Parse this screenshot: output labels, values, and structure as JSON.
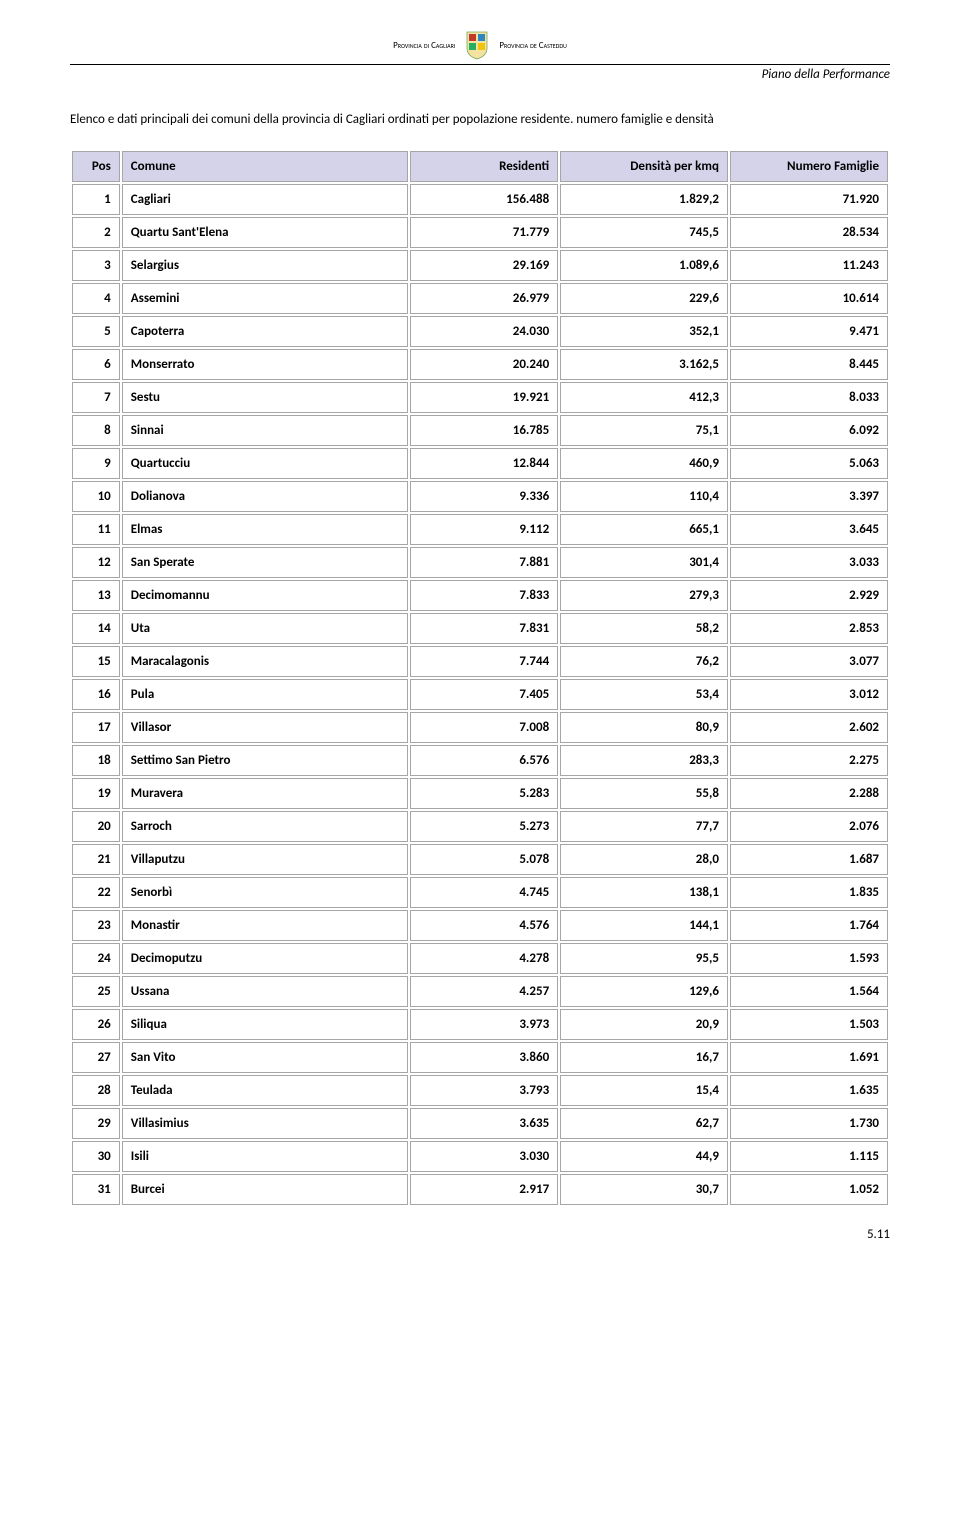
{
  "header": {
    "inst_left": "Provincia di Cagliari",
    "inst_right": "Provincia de Casteddu",
    "doc_title": "Piano della Performance"
  },
  "intro": "Elenco e dati principali dei comuni della provincia di Cagliari ordinati per popolazione residente. numero famiglie e densità",
  "table": {
    "columns": {
      "pos": "Pos",
      "comune": "Comune",
      "residenti": "Residenti",
      "densita": "Densità per kmq",
      "famiglie": "Numero Famiglie"
    },
    "rows": [
      {
        "pos": "1",
        "comune": "Cagliari",
        "res": "156.488",
        "dens": "1.829,2",
        "fam": "71.920"
      },
      {
        "pos": "2",
        "comune": "Quartu Sant'Elena",
        "res": "71.779",
        "dens": "745,5",
        "fam": "28.534"
      },
      {
        "pos": "3",
        "comune": "Selargius",
        "res": "29.169",
        "dens": "1.089,6",
        "fam": "11.243"
      },
      {
        "pos": "4",
        "comune": "Assemini",
        "res": "26.979",
        "dens": "229,6",
        "fam": "10.614"
      },
      {
        "pos": "5",
        "comune": "Capoterra",
        "res": "24.030",
        "dens": "352,1",
        "fam": "9.471"
      },
      {
        "pos": "6",
        "comune": "Monserrato",
        "res": "20.240",
        "dens": "3.162,5",
        "fam": "8.445"
      },
      {
        "pos": "7",
        "comune": "Sestu",
        "res": "19.921",
        "dens": "412,3",
        "fam": "8.033"
      },
      {
        "pos": "8",
        "comune": "Sinnai",
        "res": "16.785",
        "dens": "75,1",
        "fam": "6.092"
      },
      {
        "pos": "9",
        "comune": "Quartucciu",
        "res": "12.844",
        "dens": "460,9",
        "fam": "5.063"
      },
      {
        "pos": "10",
        "comune": "Dolianova",
        "res": "9.336",
        "dens": "110,4",
        "fam": "3.397"
      },
      {
        "pos": "11",
        "comune": "Elmas",
        "res": "9.112",
        "dens": "665,1",
        "fam": "3.645"
      },
      {
        "pos": "12",
        "comune": "San Sperate",
        "res": "7.881",
        "dens": "301,4",
        "fam": "3.033"
      },
      {
        "pos": "13",
        "comune": "Decimomannu",
        "res": "7.833",
        "dens": "279,3",
        "fam": "2.929"
      },
      {
        "pos": "14",
        "comune": "Uta",
        "res": "7.831",
        "dens": "58,2",
        "fam": "2.853"
      },
      {
        "pos": "15",
        "comune": "Maracalagonis",
        "res": "7.744",
        "dens": "76,2",
        "fam": "3.077"
      },
      {
        "pos": "16",
        "comune": "Pula",
        "res": "7.405",
        "dens": "53,4",
        "fam": "3.012"
      },
      {
        "pos": "17",
        "comune": "Villasor",
        "res": "7.008",
        "dens": "80,9",
        "fam": "2.602"
      },
      {
        "pos": "18",
        "comune": "Settimo San Pietro",
        "res": "6.576",
        "dens": "283,3",
        "fam": "2.275"
      },
      {
        "pos": "19",
        "comune": "Muravera",
        "res": "5.283",
        "dens": "55,8",
        "fam": "2.288"
      },
      {
        "pos": "20",
        "comune": "Sarroch",
        "res": "5.273",
        "dens": "77,7",
        "fam": "2.076"
      },
      {
        "pos": "21",
        "comune": "Villaputzu",
        "res": "5.078",
        "dens": "28,0",
        "fam": "1.687"
      },
      {
        "pos": "22",
        "comune": "Senorbì",
        "res": "4.745",
        "dens": "138,1",
        "fam": "1.835"
      },
      {
        "pos": "23",
        "comune": "Monastir",
        "res": "4.576",
        "dens": "144,1",
        "fam": "1.764"
      },
      {
        "pos": "24",
        "comune": "Decimoputzu",
        "res": "4.278",
        "dens": "95,5",
        "fam": "1.593"
      },
      {
        "pos": "25",
        "comune": "Ussana",
        "res": "4.257",
        "dens": "129,6",
        "fam": "1.564"
      },
      {
        "pos": "26",
        "comune": "Siliqua",
        "res": "3.973",
        "dens": "20,9",
        "fam": "1.503"
      },
      {
        "pos": "27",
        "comune": "San Vito",
        "res": "3.860",
        "dens": "16,7",
        "fam": "1.691"
      },
      {
        "pos": "28",
        "comune": "Teulada",
        "res": "3.793",
        "dens": "15,4",
        "fam": "1.635"
      },
      {
        "pos": "29",
        "comune": "Villasimius",
        "res": "3.635",
        "dens": "62,7",
        "fam": "1.730"
      },
      {
        "pos": "30",
        "comune": "Isili",
        "res": "3.030",
        "dens": "44,9",
        "fam": "1.115"
      },
      {
        "pos": "31",
        "comune": "Burcei",
        "res": "2.917",
        "dens": "30,7",
        "fam": "1.052"
      }
    ]
  },
  "page_number": "5.11",
  "colors": {
    "header_bg": "#d4d3ea",
    "border": "#a6a6a6",
    "text": "#000000",
    "background": "#ffffff"
  }
}
